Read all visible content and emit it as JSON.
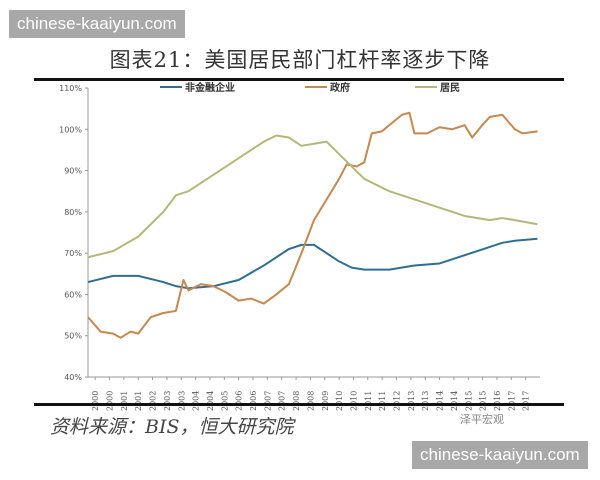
{
  "watermark": "chinese-kaaiyun.com",
  "title": "图表21：美国居民部门杠杆率逐步下降",
  "source": "资料来源：BIS，恒大研究院",
  "brand": "泽平宏观",
  "chart_data": {
    "type": "line",
    "title": "图表21：美国居民部门杠杆率逐步下降",
    "ylim": [
      40,
      110
    ],
    "yticks": [
      "40%",
      "50%",
      "60%",
      "70%",
      "80%",
      "90%",
      "100%",
      "110%"
    ],
    "xticks": [
      "2000",
      "2000",
      "2001",
      "2001",
      "2002",
      "2003",
      "2003",
      "2004",
      "2004",
      "2005",
      "2006",
      "2006",
      "2007",
      "2007",
      "2008",
      "2008",
      "2009",
      "2010",
      "2010",
      "2011",
      "2011",
      "2012",
      "2013",
      "2013",
      "2014",
      "2014",
      "2015",
      "2015",
      "2016",
      "2017",
      "2017"
    ],
    "xlim": [
      2000,
      2018
    ],
    "legend": "top",
    "grid": false,
    "series": [
      {
        "name": "非金融企业",
        "color": "#2e6e96",
        "x": [
          2000,
          2001,
          2002,
          2003,
          2003.5,
          2004,
          2005,
          2006,
          2007,
          2008,
          2008.5,
          2009,
          2010,
          2010.5,
          2011,
          2012,
          2013,
          2014,
          2015,
          2016,
          2016.5,
          2017,
          2017.9
        ],
        "values": [
          63,
          64.5,
          64.5,
          63,
          62,
          61.5,
          62,
          63.5,
          67,
          71,
          72,
          72,
          68,
          66.5,
          66,
          66,
          67,
          67.5,
          69.5,
          71.5,
          72.5,
          73,
          73.5
        ]
      },
      {
        "name": "政府",
        "color": "#c8874d",
        "x": [
          2000,
          2000.5,
          2001,
          2001.3,
          2001.7,
          2002,
          2002.5,
          2003,
          2003.5,
          2003.8,
          2004,
          2004.5,
          2005,
          2005.5,
          2006,
          2006.5,
          2007,
          2007.5,
          2008,
          2008.5,
          2009,
          2009.5,
          2010,
          2010.3,
          2010.7,
          2011,
          2011.3,
          2011.7,
          2012,
          2012.5,
          2012.8,
          2013,
          2013.5,
          2014,
          2014.5,
          2015,
          2015.3,
          2015.7,
          2016,
          2016.5,
          2017,
          2017.3,
          2017.9
        ],
        "values": [
          54.5,
          51,
          50.5,
          49.5,
          51,
          50.5,
          54.5,
          55.5,
          56,
          63.5,
          61,
          62.5,
          62,
          60.5,
          58.5,
          59,
          57.8,
          60,
          62.5,
          70,
          78,
          83,
          88,
          91.5,
          91,
          92,
          99,
          99.5,
          101,
          103.5,
          104,
          99,
          99,
          100.5,
          100,
          101,
          98,
          101,
          103,
          103.5,
          100,
          99,
          99.5
        ]
      },
      {
        "name": "居民",
        "color": "#b5b77a",
        "x": [
          2000,
          2001,
          2002,
          2003,
          2003.5,
          2004,
          2005,
          2006,
          2007,
          2007.5,
          2008,
          2008.5,
          2009,
          2009.5,
          2010,
          2010.5,
          2011,
          2012,
          2013,
          2014,
          2015,
          2016,
          2016.5,
          2017,
          2017.9
        ],
        "values": [
          69,
          70.5,
          74,
          80,
          84,
          85,
          89,
          93,
          97,
          98.5,
          98,
          96,
          96.5,
          97,
          94,
          91,
          88,
          85,
          83,
          81,
          79,
          78,
          78.5,
          78,
          77
        ]
      }
    ]
  }
}
